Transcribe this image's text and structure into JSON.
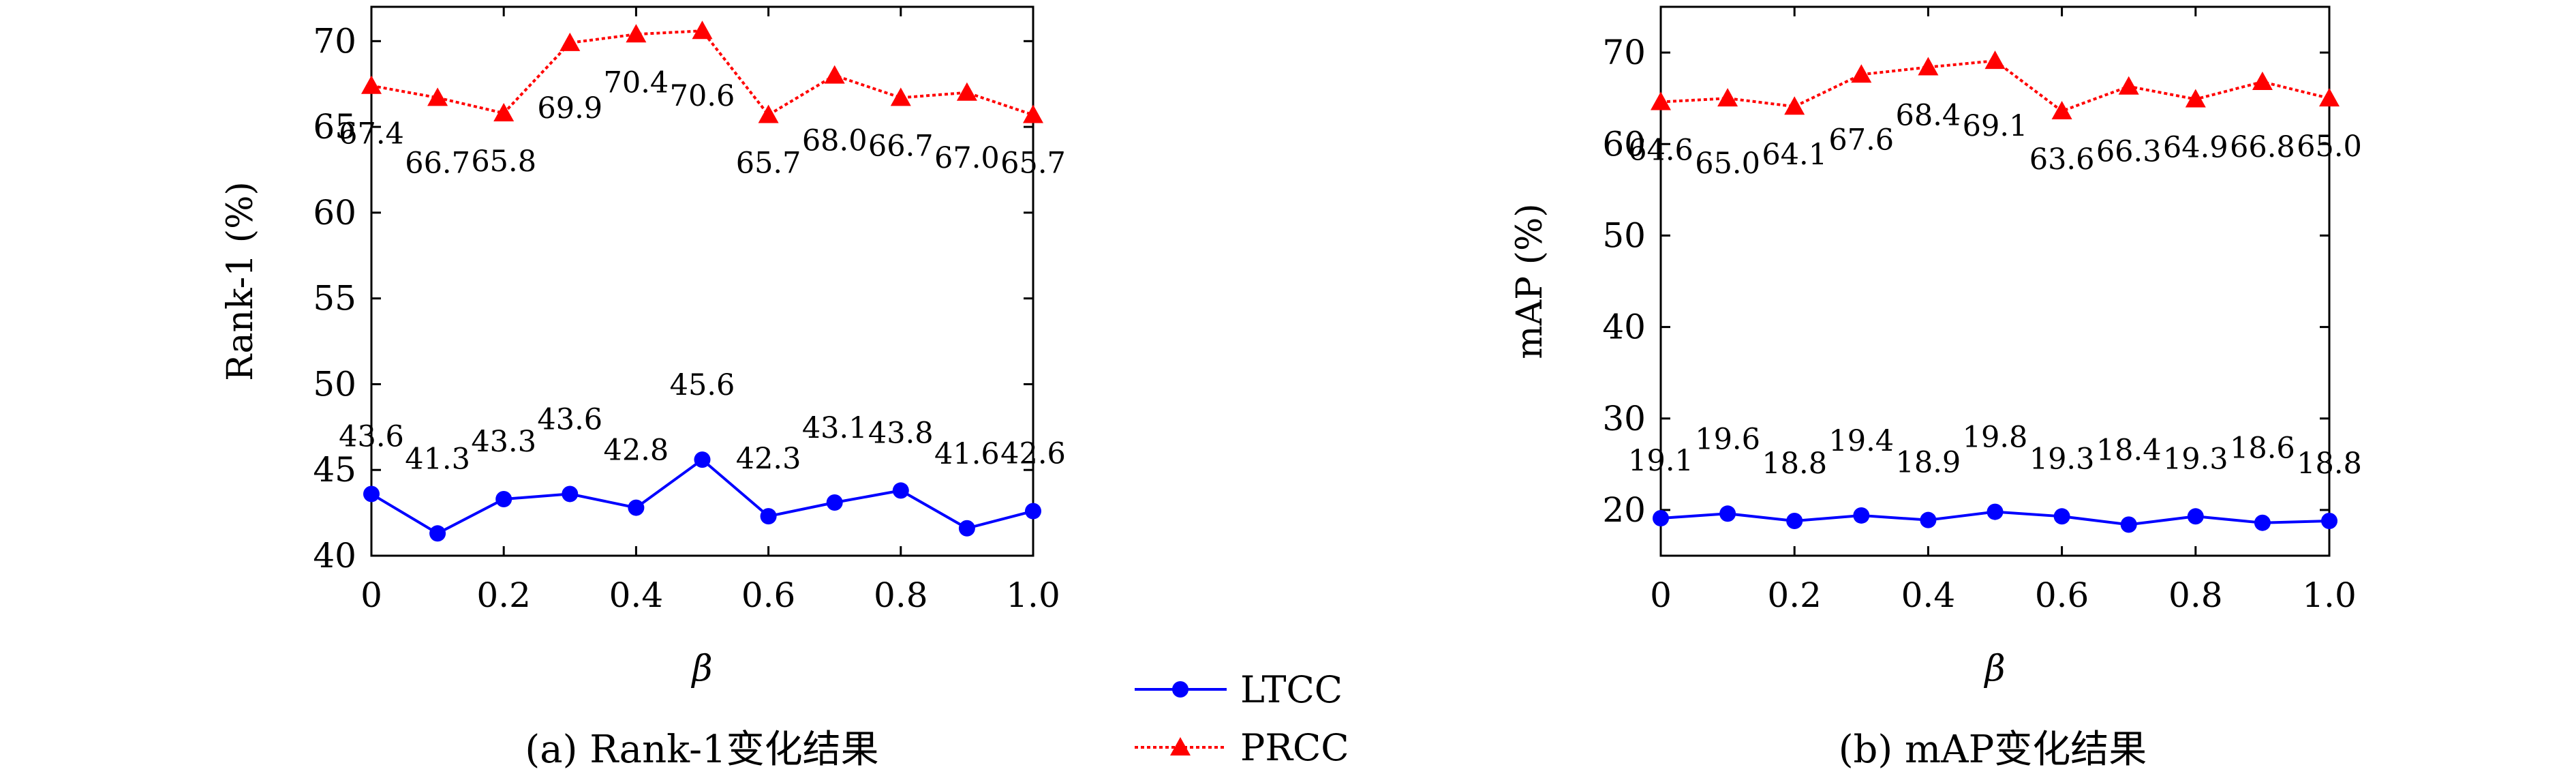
{
  "chart_data": [
    {
      "type": "line",
      "caption": "(a) Rank-1变化结果",
      "xlabel": "β",
      "ylabel": "Rank-1 (%)",
      "xlim": [
        0,
        1.0
      ],
      "ylim": [
        40,
        72
      ],
      "xticks": [
        "0",
        "0.2",
        "0.4",
        "0.6",
        "0.8",
        "1.0"
      ],
      "yticks": [
        "40",
        "45",
        "50",
        "55",
        "60",
        "65",
        "70"
      ],
      "x": [
        0,
        0.1,
        0.2,
        0.3,
        0.4,
        0.5,
        0.6,
        0.7,
        0.8,
        0.9,
        1.0
      ],
      "series": [
        {
          "name": "LTCC",
          "color": "#0000ff",
          "marker": "circle",
          "values": [
            43.6,
            41.3,
            43.3,
            43.6,
            42.8,
            45.6,
            42.3,
            43.1,
            43.8,
            41.6,
            42.6
          ],
          "labels": [
            "43.6",
            "41.3",
            "43.3",
            "43.6",
            "42.8",
            "45.6",
            "42.3",
            "43.1",
            "43.8",
            "41.6",
            "42.6"
          ]
        },
        {
          "name": "PRCC",
          "color": "#ff0000",
          "marker": "triangle",
          "values": [
            67.4,
            66.7,
            65.8,
            69.9,
            70.4,
            70.6,
            65.7,
            68.0,
            66.7,
            67.0,
            65.7
          ],
          "labels": [
            "67.4",
            "66.7",
            "65.8",
            "69.9",
            "70.4",
            "70.6",
            "65.7",
            "68.0",
            "66.7",
            "67.0",
            "65.7"
          ]
        }
      ]
    },
    {
      "type": "line",
      "caption": "(b) mAP变化结果",
      "xlabel": "β",
      "ylabel": "mAP (%)",
      "xlim": [
        0,
        1.0
      ],
      "ylim": [
        15,
        75
      ],
      "xticks": [
        "0",
        "0.2",
        "0.4",
        "0.6",
        "0.8",
        "1.0"
      ],
      "yticks": [
        "20",
        "30",
        "40",
        "50",
        "60",
        "70"
      ],
      "x": [
        0,
        0.1,
        0.2,
        0.3,
        0.4,
        0.5,
        0.6,
        0.7,
        0.8,
        0.9,
        1.0
      ],
      "series": [
        {
          "name": "LTCC",
          "color": "#0000ff",
          "marker": "circle",
          "values": [
            19.1,
            19.6,
            18.8,
            19.4,
            18.9,
            19.8,
            19.3,
            18.4,
            19.3,
            18.6,
            18.8
          ],
          "labels": [
            "19.1",
            "19.6",
            "18.8",
            "19.4",
            "18.9",
            "19.8",
            "19.3",
            "18.4",
            "19.3",
            "18.6",
            "18.8"
          ]
        },
        {
          "name": "PRCC",
          "color": "#ff0000",
          "marker": "triangle",
          "values": [
            64.6,
            65.0,
            64.1,
            67.6,
            68.4,
            69.1,
            63.6,
            66.3,
            64.9,
            66.8,
            65.0
          ],
          "labels": [
            "64.6",
            "65.0",
            "64.1",
            "67.6",
            "68.4",
            "69.1",
            "63.6",
            "66.3",
            "64.9",
            "66.8",
            "65.0"
          ]
        }
      ]
    }
  ],
  "legend": {
    "placement": "bottom-center",
    "items": [
      {
        "label": "LTCC",
        "color": "#0000ff",
        "marker": "circle"
      },
      {
        "label": "PRCC",
        "color": "#ff0000",
        "marker": "triangle"
      }
    ]
  }
}
